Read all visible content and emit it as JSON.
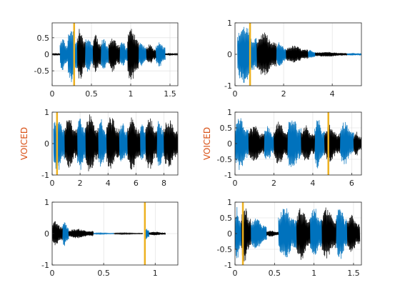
{
  "colors": {
    "voiced": "#0072BD",
    "unvoiced": "#000000",
    "marker": "#EDB120",
    "ylabel": "#D95319",
    "axis": "#262626",
    "grid": "#dcdcdc"
  },
  "chart_data": [
    {
      "type": "line",
      "title": "",
      "xlabel": "",
      "ylabel": "",
      "xlim": [
        0,
        1.6
      ],
      "ylim": [
        -0.95,
        0.95
      ],
      "xticks": [
        0,
        0.5,
        1,
        1.5
      ],
      "xtick_labels": [
        "0",
        "0.5",
        "1",
        "1.5"
      ],
      "yticks": [
        -0.5,
        0,
        0.5
      ],
      "ytick_labels": [
        "-0.5",
        "0",
        "0.5"
      ],
      "grid": true,
      "marker_x": 0.28,
      "series": [
        {
          "class": "voiced",
          "segments": [
            {
              "start": 0.1,
              "end": 0.2,
              "amplitude": 0.5
            },
            {
              "start": 0.2,
              "end": 0.32,
              "amplitude": 0.85
            },
            {
              "start": 0.42,
              "end": 0.52,
              "amplitude": 0.6
            },
            {
              "start": 0.62,
              "end": 0.72,
              "amplitude": 0.5
            },
            {
              "start": 0.86,
              "end": 0.96,
              "amplitude": 0.4
            },
            {
              "start": 1.1,
              "end": 1.2,
              "amplitude": 0.4
            },
            {
              "start": 1.32,
              "end": 1.44,
              "amplitude": 0.4
            }
          ]
        },
        {
          "class": "unvoiced",
          "segments": [
            {
              "start": 0.0,
              "end": 0.1,
              "amplitude": 0.04
            },
            {
              "start": 0.32,
              "end": 0.42,
              "amplitude": 0.8
            },
            {
              "start": 0.52,
              "end": 0.62,
              "amplitude": 0.6
            },
            {
              "start": 0.72,
              "end": 0.86,
              "amplitude": 0.55
            },
            {
              "start": 0.96,
              "end": 1.1,
              "amplitude": 0.85
            },
            {
              "start": 1.2,
              "end": 1.32,
              "amplitude": 0.3
            },
            {
              "start": 1.44,
              "end": 1.6,
              "amplitude": 0.04
            }
          ]
        }
      ]
    },
    {
      "type": "line",
      "title": "",
      "xlabel": "",
      "ylabel": "",
      "xlim": [
        0,
        5.2
      ],
      "ylim": [
        -1,
        1
      ],
      "xticks": [
        0,
        2,
        4
      ],
      "xtick_labels": [
        "0",
        "2",
        "4"
      ],
      "yticks": [
        -1,
        0,
        1
      ],
      "ytick_labels": [
        "-1",
        "0",
        "1"
      ],
      "grid": true,
      "marker_x": 0.62,
      "series": [
        {
          "class": "voiced",
          "segments": [
            {
              "start": 0.1,
              "end": 0.9,
              "amplitude": 0.95
            },
            {
              "start": 1.7,
              "end": 2.1,
              "amplitude": 0.4
            },
            {
              "start": 3.0,
              "end": 3.3,
              "amplitude": 0.15
            },
            {
              "start": 4.6,
              "end": 5.2,
              "amplitude": 0.04
            }
          ]
        },
        {
          "class": "unvoiced",
          "segments": [
            {
              "start": 0.9,
              "end": 1.7,
              "amplitude": 0.7
            },
            {
              "start": 2.1,
              "end": 3.0,
              "amplitude": 0.28
            },
            {
              "start": 3.3,
              "end": 4.6,
              "amplitude": 0.08
            }
          ]
        }
      ]
    },
    {
      "type": "line",
      "title": "",
      "xlabel": "",
      "ylabel": "VOICED",
      "xlim": [
        0,
        9
      ],
      "ylim": [
        -1,
        1
      ],
      "xticks": [
        0,
        2,
        4,
        6,
        8
      ],
      "xtick_labels": [
        "0",
        "2",
        "4",
        "6",
        "8"
      ],
      "yticks": [
        -1,
        0,
        1
      ],
      "ytick_labels": [
        "-1",
        "0",
        "1"
      ],
      "grid": true,
      "marker_x": 0.35,
      "series": [
        {
          "class": "voiced",
          "segments": [
            {
              "start": 0.1,
              "end": 0.9,
              "amplitude": 0.95
            },
            {
              "start": 1.8,
              "end": 2.4,
              "amplitude": 0.9
            },
            {
              "start": 3.3,
              "end": 3.9,
              "amplitude": 0.8
            },
            {
              "start": 4.8,
              "end": 5.4,
              "amplitude": 0.7
            },
            {
              "start": 6.3,
              "end": 6.7,
              "amplitude": 0.7
            },
            {
              "start": 7.5,
              "end": 8.0,
              "amplitude": 0.8
            }
          ]
        },
        {
          "class": "unvoiced",
          "segments": [
            {
              "start": 0.9,
              "end": 1.8,
              "amplitude": 0.85
            },
            {
              "start": 2.4,
              "end": 3.3,
              "amplitude": 0.95
            },
            {
              "start": 3.9,
              "end": 4.8,
              "amplitude": 0.9
            },
            {
              "start": 5.4,
              "end": 6.3,
              "amplitude": 0.85
            },
            {
              "start": 6.7,
              "end": 7.5,
              "amplitude": 0.85
            },
            {
              "start": 8.0,
              "end": 9.0,
              "amplitude": 0.8
            }
          ]
        }
      ]
    },
    {
      "type": "line",
      "title": "",
      "xlabel": "",
      "ylabel": "VOICED",
      "xlim": [
        0,
        6.5
      ],
      "ylim": [
        -1,
        1
      ],
      "xticks": [
        0,
        2,
        4,
        6
      ],
      "xtick_labels": [
        "0",
        "2",
        "4",
        "6"
      ],
      "yticks": [
        -1,
        -0.5,
        0,
        0.5,
        1
      ],
      "ytick_labels": [
        "-1",
        "-0.5",
        "0",
        "0.5",
        "1"
      ],
      "grid": true,
      "marker_x": 4.8,
      "series": [
        {
          "class": "voiced",
          "segments": [
            {
              "start": 0.0,
              "end": 0.7,
              "amplitude": 0.85
            },
            {
              "start": 1.5,
              "end": 2.0,
              "amplitude": 0.6
            },
            {
              "start": 2.7,
              "end": 3.4,
              "amplitude": 0.9
            },
            {
              "start": 4.1,
              "end": 4.6,
              "amplitude": 0.8
            },
            {
              "start": 5.4,
              "end": 6.1,
              "amplitude": 0.7
            }
          ]
        },
        {
          "class": "unvoiced",
          "segments": [
            {
              "start": 0.7,
              "end": 1.5,
              "amplitude": 0.6
            },
            {
              "start": 2.0,
              "end": 2.7,
              "amplitude": 0.7
            },
            {
              "start": 3.4,
              "end": 4.1,
              "amplitude": 0.6
            },
            {
              "start": 4.6,
              "end": 5.4,
              "amplitude": 0.6
            },
            {
              "start": 6.1,
              "end": 6.5,
              "amplitude": 0.4
            }
          ]
        }
      ]
    },
    {
      "type": "line",
      "title": "",
      "xlabel": "",
      "ylabel": "",
      "xlim": [
        0,
        1.22
      ],
      "ylim": [
        -1,
        1
      ],
      "xticks": [
        0,
        0.5,
        1
      ],
      "xtick_labels": [
        "0",
        "0.5",
        "1"
      ],
      "yticks": [
        -1,
        0,
        1
      ],
      "ytick_labels": [
        "-1",
        "0",
        "1"
      ],
      "grid": true,
      "marker_x": 0.9,
      "series": [
        {
          "class": "voiced",
          "segments": [
            {
              "start": 0.1,
              "end": 0.16,
              "amplitude": 0.4
            },
            {
              "start": 0.4,
              "end": 0.6,
              "amplitude": 0.02
            },
            {
              "start": 0.9,
              "end": 0.94,
              "amplitude": 0.2
            }
          ]
        },
        {
          "class": "unvoiced",
          "segments": [
            {
              "start": 0.0,
              "end": 0.1,
              "amplitude": 0.4
            },
            {
              "start": 0.16,
              "end": 0.4,
              "amplitude": 0.15
            },
            {
              "start": 0.6,
              "end": 0.88,
              "amplitude": 0.02
            },
            {
              "start": 0.94,
              "end": 1.1,
              "amplitude": 0.06
            }
          ]
        }
      ]
    },
    {
      "type": "line",
      "title": "",
      "xlabel": "",
      "ylabel": "",
      "xlim": [
        0,
        1.6
      ],
      "ylim": [
        -1,
        1
      ],
      "xticks": [
        0,
        0.5,
        1,
        1.5
      ],
      "xtick_labels": [
        "0",
        "0.5",
        "1",
        "1.5"
      ],
      "yticks": [
        -1,
        -0.5,
        0,
        0.5,
        1
      ],
      "ytick_labels": [
        "-1",
        "-0.5",
        "0",
        "0.5",
        "1"
      ],
      "grid": true,
      "marker_x": 0.1,
      "series": [
        {
          "class": "voiced",
          "segments": [
            {
              "start": 0.0,
              "end": 0.08,
              "amplitude": 0.85
            },
            {
              "start": 0.2,
              "end": 0.4,
              "amplitude": 0.5
            },
            {
              "start": 0.55,
              "end": 0.78,
              "amplitude": 0.85
            },
            {
              "start": 0.95,
              "end": 1.1,
              "amplitude": 0.85
            },
            {
              "start": 1.28,
              "end": 1.42,
              "amplitude": 0.85
            }
          ]
        },
        {
          "class": "unvoiced",
          "segments": [
            {
              "start": 0.08,
              "end": 0.2,
              "amplitude": 0.9
            },
            {
              "start": 0.4,
              "end": 0.55,
              "amplitude": 0.1
            },
            {
              "start": 0.78,
              "end": 0.95,
              "amplitude": 0.85
            },
            {
              "start": 1.1,
              "end": 1.28,
              "amplitude": 0.85
            },
            {
              "start": 1.42,
              "end": 1.58,
              "amplitude": 0.6
            }
          ]
        }
      ]
    }
  ]
}
